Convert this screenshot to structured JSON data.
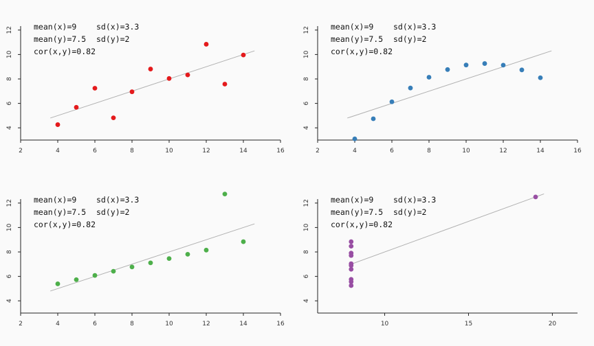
{
  "chart_data": [
    {
      "type": "scatter",
      "panel": "top-left",
      "color": "#e41a1c",
      "xlim": [
        2,
        16
      ],
      "ylim": [
        3,
        13
      ],
      "xticks": [
        2,
        4,
        6,
        8,
        10,
        12,
        14,
        16
      ],
      "yticks": [
        4,
        6,
        8,
        10,
        12
      ],
      "annotations": [
        "mean(x)=9",
        "sd(x)=3.3",
        "mean(y)=7.5",
        "sd(y)=2",
        "cor(x,y)=0.82"
      ],
      "fit": {
        "intercept": 3.0,
        "slope": 0.5,
        "x_range": [
          3.6,
          14.6
        ]
      },
      "series": [
        {
          "x": [
            10,
            8,
            13,
            9,
            11,
            14,
            6,
            4,
            12,
            7,
            5
          ],
          "y": [
            8.04,
            6.95,
            7.58,
            8.81,
            8.33,
            9.96,
            7.24,
            4.26,
            10.84,
            4.82,
            5.68
          ]
        }
      ]
    },
    {
      "type": "scatter",
      "panel": "top-right",
      "color": "#377eb8",
      "xlim": [
        2,
        16
      ],
      "ylim": [
        3,
        13
      ],
      "xticks": [
        2,
        4,
        6,
        8,
        10,
        12,
        14,
        16
      ],
      "yticks": [
        4,
        6,
        8,
        10,
        12
      ],
      "annotations": [
        "mean(x)=9",
        "sd(x)=3.3",
        "mean(y)=7.5",
        "sd(y)=2",
        "cor(x,y)=0.82"
      ],
      "fit": {
        "intercept": 3.0,
        "slope": 0.5,
        "x_range": [
          3.6,
          14.6
        ]
      },
      "series": [
        {
          "x": [
            10,
            8,
            13,
            9,
            11,
            14,
            6,
            4,
            12,
            7,
            5
          ],
          "y": [
            9.14,
            8.14,
            8.74,
            8.77,
            9.26,
            8.1,
            6.13,
            3.1,
            9.13,
            7.26,
            4.74
          ]
        }
      ]
    },
    {
      "type": "scatter",
      "panel": "bottom-left",
      "color": "#4daf4a",
      "xlim": [
        2,
        16
      ],
      "ylim": [
        3,
        13
      ],
      "xticks": [
        2,
        4,
        6,
        8,
        10,
        12,
        14,
        16
      ],
      "yticks": [
        4,
        6,
        8,
        10,
        12
      ],
      "annotations": [
        "mean(x)=9",
        "sd(x)=3.3",
        "mean(y)=7.5",
        "sd(y)=2",
        "cor(x,y)=0.82"
      ],
      "fit": {
        "intercept": 3.0,
        "slope": 0.5,
        "x_range": [
          3.6,
          14.6
        ]
      },
      "series": [
        {
          "x": [
            10,
            8,
            13,
            9,
            11,
            14,
            6,
            4,
            12,
            7,
            5
          ],
          "y": [
            7.46,
            6.77,
            12.74,
            7.11,
            7.81,
            8.84,
            6.08,
            5.39,
            8.15,
            6.42,
            5.73
          ]
        }
      ]
    },
    {
      "type": "scatter",
      "panel": "bottom-right",
      "color": "#984ea3",
      "xlim": [
        6,
        21.5
      ],
      "ylim": [
        3,
        13
      ],
      "xticks": [
        10,
        15,
        20
      ],
      "yticks": [
        4,
        6,
        8,
        10,
        12
      ],
      "annotations": [
        "mean(x)=9",
        "sd(x)=3.3",
        "mean(y)=7.5",
        "sd(y)=2",
        "cor(x,y)=0.82"
      ],
      "fit": {
        "intercept": 3.0,
        "slope": 0.5,
        "x_range": [
          8,
          19.5
        ]
      },
      "series": [
        {
          "x": [
            8,
            8,
            8,
            8,
            8,
            8,
            8,
            19,
            8,
            8,
            8
          ],
          "y": [
            6.58,
            5.76,
            7.71,
            8.84,
            8.47,
            7.04,
            5.25,
            12.5,
            5.56,
            7.91,
            6.89
          ]
        }
      ]
    }
  ]
}
